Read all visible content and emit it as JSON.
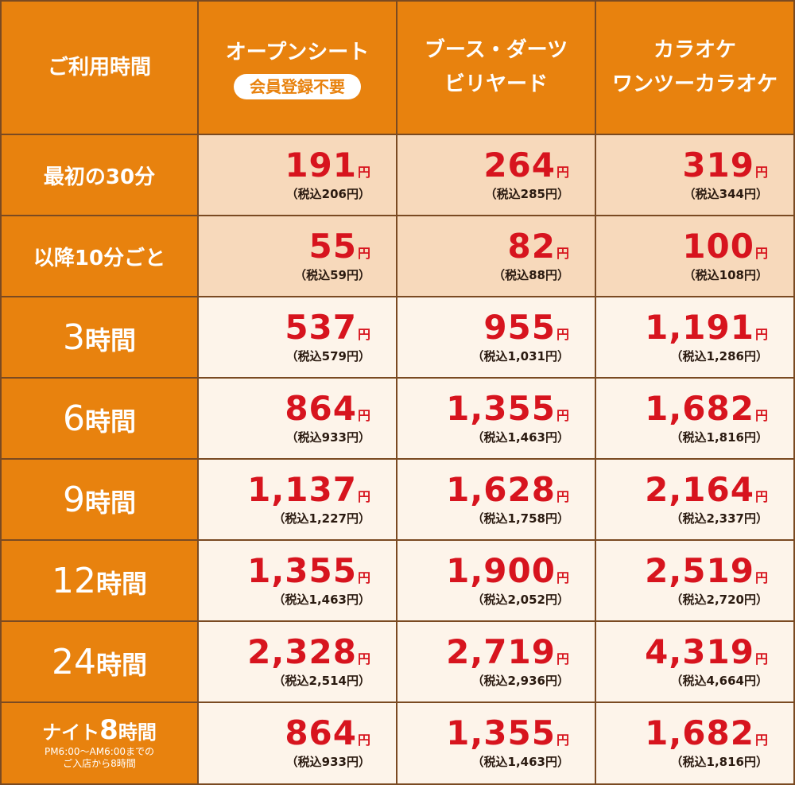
{
  "header": {
    "corner": "ご利用時間",
    "columns": [
      {
        "lines": [
          "オープンシート"
        ],
        "badge": "会員登録不要"
      },
      {
        "lines": [
          "ブース・ダーツ",
          "ビリヤード"
        ]
      },
      {
        "lines": [
          "カラオケ",
          "ワンツーカラオケ"
        ]
      }
    ]
  },
  "unit": "円",
  "tax_prefix": "（税込",
  "tax_suffix": "円）",
  "rows": [
    {
      "label": "最初の30分",
      "style": "small",
      "tint": "tint",
      "prices": [
        {
          "v": "191",
          "tax": "206"
        },
        {
          "v": "264",
          "tax": "285"
        },
        {
          "v": "319",
          "tax": "344"
        }
      ]
    },
    {
      "label": "以降10分ごと",
      "style": "small",
      "tint": "tint",
      "prices": [
        {
          "v": "55",
          "tax": "59"
        },
        {
          "v": "82",
          "tax": "88"
        },
        {
          "v": "100",
          "tax": "108"
        }
      ]
    },
    {
      "num": "3",
      "kanji": "時間",
      "style": "big",
      "tint": "light",
      "prices": [
        {
          "v": "537",
          "tax": "579"
        },
        {
          "v": "955",
          "tax": "1,031"
        },
        {
          "v": "1,191",
          "tax": "1,286"
        }
      ]
    },
    {
      "num": "6",
      "kanji": "時間",
      "style": "big",
      "tint": "light",
      "prices": [
        {
          "v": "864",
          "tax": "933"
        },
        {
          "v": "1,355",
          "tax": "1,463"
        },
        {
          "v": "1,682",
          "tax": "1,816"
        }
      ]
    },
    {
      "num": "9",
      "kanji": "時間",
      "style": "big",
      "tint": "light",
      "prices": [
        {
          "v": "1,137",
          "tax": "1,227"
        },
        {
          "v": "1,628",
          "tax": "1,758"
        },
        {
          "v": "2,164",
          "tax": "2,337"
        }
      ]
    },
    {
      "num": "12",
      "kanji": "時間",
      "style": "big",
      "tint": "light",
      "prices": [
        {
          "v": "1,355",
          "tax": "1,463"
        },
        {
          "v": "1,900",
          "tax": "2,052"
        },
        {
          "v": "2,519",
          "tax": "2,720"
        }
      ]
    },
    {
      "num": "24",
      "kanji": "時間",
      "style": "big",
      "tint": "light",
      "prices": [
        {
          "v": "2,328",
          "tax": "2,514"
        },
        {
          "v": "2,719",
          "tax": "2,936"
        },
        {
          "v": "4,319",
          "tax": "4,664"
        }
      ]
    },
    {
      "pre": "ナイト",
      "num": "8",
      "kanji": "時間",
      "style": "night",
      "tint": "light",
      "sub": [
        "PM6:00～AM6:00までの",
        "ご入店から8時間"
      ],
      "prices": [
        {
          "v": "864",
          "tax": "933"
        },
        {
          "v": "1,355",
          "tax": "1,463"
        },
        {
          "v": "1,682",
          "tax": "1,816"
        }
      ]
    }
  ],
  "colors": {
    "header_bg": "#e8820e",
    "border": "#7a4a22",
    "price_red": "#d7141e",
    "tint_bg": "#f7d9bb",
    "light_bg": "#fdf4ea"
  }
}
